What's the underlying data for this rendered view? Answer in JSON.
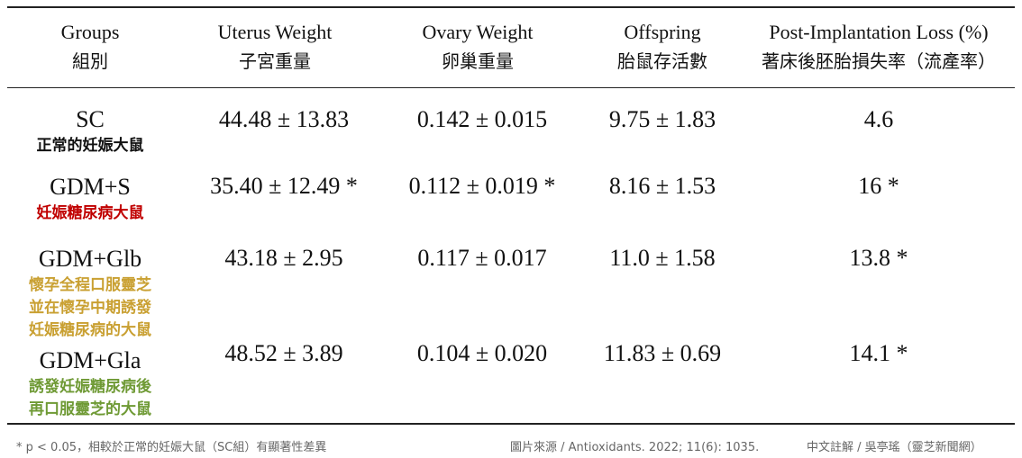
{
  "header": [
    {
      "en": "Groups",
      "zh": "組別"
    },
    {
      "en": "Uterus Weight",
      "zh": "子宮重量"
    },
    {
      "en": "Ovary Weight",
      "zh": "卵巢重量"
    },
    {
      "en": "Offspring",
      "zh": "胎鼠存活數"
    },
    {
      "en": "Post-Implantation Loss (%)",
      "zh": "著床後胚胎損失率（流產率）"
    }
  ],
  "rows": [
    {
      "group": "SC",
      "group_zh": [
        "正常的妊娠大鼠"
      ],
      "values": [
        "44.48 ± 13.83",
        "0.142 ± 0.015",
        "9.75 ± 1.83",
        "4.6"
      ]
    },
    {
      "group": "GDM+S",
      "group_zh": [
        "妊娠糖尿病大鼠"
      ],
      "values": [
        "35.40 ± 12.49 *",
        "0.112 ± 0.019 *",
        "8.16 ± 1.53",
        "16 *"
      ]
    },
    {
      "group": "GDM+Glb",
      "group_zh": [
        "懷孕全程口服靈芝",
        "並在懷孕中期誘發",
        "妊娠糖尿病的大鼠"
      ],
      "values": [
        "43.18 ± 2.95",
        "0.117 ± 0.017",
        "11.0 ± 1.58",
        "13.8 *"
      ]
    },
    {
      "group": "GDM+Gla",
      "group_zh": [
        "誘發妊娠糖尿病後",
        "再口服靈芝的大鼠"
      ],
      "values": [
        "48.52 ± 3.89",
        "0.104 ± 0.020",
        "11.83 ± 0.69",
        "14.1 *"
      ]
    }
  ],
  "footnote": "* p < 0.05，相較於正常的妊娠大鼠（SC組）有顯著性差異",
  "source": "圖片來源 / Antioxidants. 2022; 11(6): 1035.",
  "credit": "中文註解 / 吳亭瑤（靈芝新聞網）"
}
